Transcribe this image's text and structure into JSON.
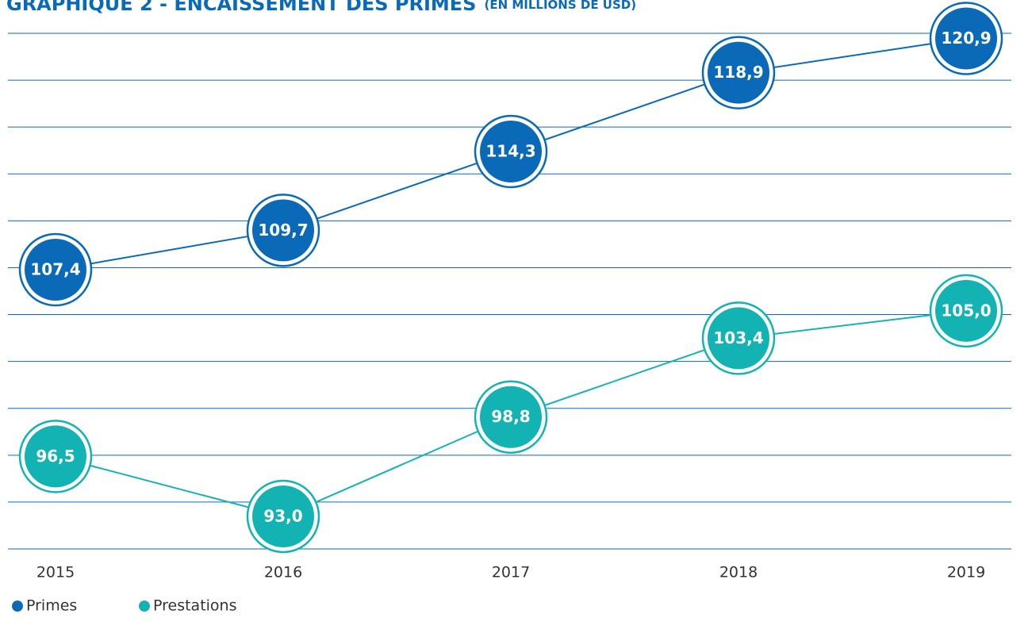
{
  "chart_data": {
    "type": "line",
    "title": "GRAPHIQUE 2 - ENCAISSEMENT DES PRIMES",
    "subtitle": "(EN MILLIONS DE USD)",
    "categories": [
      "2015",
      "2016",
      "2017",
      "2018",
      "2019"
    ],
    "series": [
      {
        "name": "Primes",
        "color": "#0a6ab8",
        "values": [
          107.4,
          109.7,
          114.3,
          118.9,
          120.9
        ],
        "value_labels": [
          "107,4",
          "109,7",
          "114,3",
          "118,9",
          "120,9"
        ]
      },
      {
        "name": "Prestations",
        "color": "#13b3b3",
        "values": [
          96.5,
          93.0,
          98.8,
          103.4,
          105.0
        ],
        "value_labels": [
          "96,5",
          "93,0",
          "98,8",
          "103,4",
          "105,0"
        ]
      }
    ],
    "ylim": [
      91.1,
      121.2
    ],
    "legend": "bottom-left"
  }
}
